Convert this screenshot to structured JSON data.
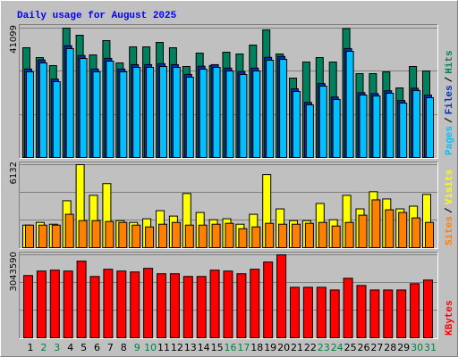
{
  "chart_data": [
    {
      "type": "bar",
      "title": "Daily usage for August 2025",
      "categories": [
        "1",
        "2",
        "3",
        "4",
        "5",
        "6",
        "7",
        "8",
        "9",
        "10",
        "11",
        "12",
        "13",
        "14",
        "15",
        "16",
        "17",
        "18",
        "19",
        "20",
        "21",
        "22",
        "23",
        "24",
        "25",
        "26",
        "27",
        "28",
        "29",
        "30",
        "31"
      ],
      "category_colors": [
        "#000000",
        "#008040",
        "#008040",
        "#000000",
        "#000000",
        "#000000",
        "#000000",
        "#000000",
        "#008040",
        "#008040",
        "#000000",
        "#000000",
        "#000000",
        "#000000",
        "#000000",
        "#008040",
        "#008040",
        "#000000",
        "#000000",
        "#000000",
        "#000000",
        "#000000",
        "#008040",
        "#008040",
        "#000000",
        "#000000",
        "#000000",
        "#000000",
        "#000000",
        "#008040",
        "#008040"
      ],
      "legend_separator": "/",
      "ylim": [
        0,
        41099
      ],
      "yticks": [
        41099
      ],
      "series": [
        {
          "name": "Hits",
          "color": "#00805c",
          "values": [
            34860,
            31740,
            29190,
            41099,
            38830,
            32590,
            37130,
            30040,
            35140,
            35140,
            36560,
            34860,
            28910,
            33160,
            29190,
            33440,
            32880,
            35710,
            40530,
            32880,
            25220,
            30320,
            31740,
            30320,
            40950,
            26640,
            26640,
            27210,
            22110,
            28910,
            27490
          ]
        },
        {
          "name": "Files",
          "color": "#0030c0",
          "values": [
            28100,
            31000,
            24900,
            35500,
            32400,
            28100,
            31500,
            28100,
            29500,
            29500,
            29800,
            29500,
            26400,
            29000,
            29500,
            28400,
            27300,
            28400,
            31800,
            32100,
            21800,
            17500,
            23500,
            19200,
            34600,
            20600,
            20300,
            21200,
            18100,
            22000,
            19800
          ]
        },
        {
          "name": "Pages",
          "color": "#00c0ff",
          "values": [
            27210,
            30040,
            24090,
            34580,
            31460,
            27210,
            30610,
            27210,
            28620,
            28620,
            28910,
            28620,
            25510,
            28060,
            28620,
            27490,
            26360,
            27490,
            30890,
            31170,
            20970,
            16720,
            22670,
            18420,
            33720,
            19840,
            19550,
            20400,
            17290,
            21250,
            18990
          ]
        }
      ]
    },
    {
      "type": "bar",
      "ylim": [
        0,
        6132
      ],
      "yticks": [
        6132
      ],
      "series": [
        {
          "name": "Visits",
          "color": "#ffff00",
          "values": [
            1666,
            1866,
            1733,
            3466,
            6132,
            3866,
            4732,
            2000,
            1866,
            2133,
            2733,
            2333,
            3999,
            2600,
            2066,
            2133,
            1733,
            2466,
            5399,
            2866,
            2000,
            2000,
            3266,
            2066,
            3866,
            2866,
            4132,
            3599,
            2866,
            3066,
            3932
          ]
        },
        {
          "name": "Sites",
          "color": "#ff8000",
          "values": [
            1666,
            1666,
            1666,
            2466,
            2000,
            2000,
            1933,
            1866,
            1666,
            1533,
            1733,
            1866,
            1666,
            1666,
            1733,
            1800,
            1400,
            1533,
            1800,
            1733,
            1733,
            1800,
            1866,
            1600,
            1866,
            2400,
            3532,
            2799,
            2599,
            2200,
            1866
          ]
        }
      ]
    },
    {
      "type": "bar",
      "ylim": [
        0,
        3043590
      ],
      "yticks": [
        3043590
      ],
      "series": [
        {
          "name": "KBytes",
          "color": "#ff0000",
          "values": [
            2282700,
            2448100,
            2481200,
            2448100,
            2812000,
            2249600,
            2514300,
            2448100,
            2415000,
            2547400,
            2348900,
            2348900,
            2249600,
            2249600,
            2481200,
            2448100,
            2348900,
            2514300,
            2779000,
            3043590,
            1852600,
            1852600,
            1852600,
            1753400,
            2183500,
            1918800,
            1753400,
            1753400,
            1753400,
            1985000,
            2117300
          ]
        }
      ]
    }
  ]
}
